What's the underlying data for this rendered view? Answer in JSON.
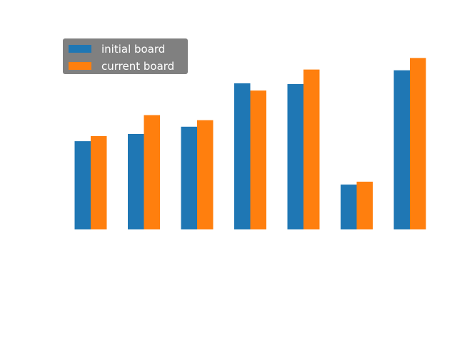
{
  "chart_data": {
    "type": "bar",
    "title": "",
    "xlabel": "",
    "ylabel": "",
    "categories": [
      "",
      "",
      "",
      "",
      "",
      "",
      ""
    ],
    "series": [
      {
        "name": "initial board",
        "color": "#1f77b4",
        "values": [
          0.61,
          0.66,
          0.71,
          1.01,
          1.005,
          0.31,
          1.1
        ]
      },
      {
        "name": "current board",
        "color": "#ff7f0e",
        "values": [
          0.645,
          0.79,
          0.755,
          0.96,
          1.105,
          0.33,
          1.185
        ]
      }
    ],
    "ylim": [
      0,
      1.3
    ],
    "axes_visible": false,
    "grid": false,
    "legend_position": "upper-left",
    "legend_background": "#808080"
  }
}
